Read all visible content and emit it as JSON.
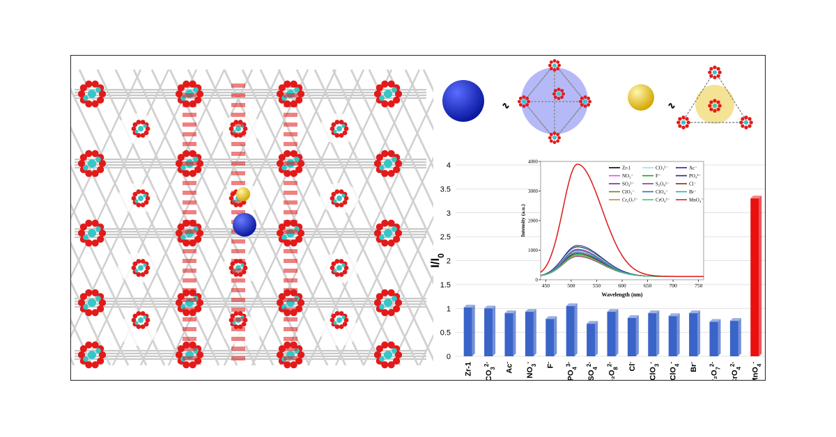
{
  "chart_data": [
    {
      "type": "bar",
      "ylabel": "I/I0",
      "ylim": [
        0,
        4
      ],
      "yticks": [
        0,
        0.5,
        1,
        1.5,
        2,
        2.5,
        3,
        3.5,
        4
      ],
      "grid": true,
      "categories": [
        "Zr-1",
        "CO3 2-",
        "Ac-",
        "NO3-",
        "F-",
        "PO4 3-",
        "SO4 2-",
        "S2O8 2-",
        "Cl-",
        "ClO3-",
        "ClO4-",
        "Br-",
        "Cr2O7 2-",
        "CrO4 2-",
        "MnO4-"
      ],
      "values": [
        1.02,
        1.0,
        0.9,
        0.93,
        0.78,
        1.05,
        0.68,
        0.93,
        0.8,
        0.9,
        0.84,
        0.9,
        0.72,
        0.74,
        3.3
      ],
      "colors": [
        "#3a64c8",
        "#3a64c8",
        "#3a64c8",
        "#3a64c8",
        "#3a64c8",
        "#3a64c8",
        "#3a64c8",
        "#3a64c8",
        "#3a64c8",
        "#3a64c8",
        "#3a64c8",
        "#3a64c8",
        "#3a64c8",
        "#3a64c8",
        "#e81010"
      ]
    },
    {
      "type": "line",
      "xlabel": "Wavelength (nm)",
      "ylabel": "Intensity (a.u.)",
      "xlim": [
        440,
        760
      ],
      "ylim": [
        0,
        4000
      ],
      "xticks": [
        450,
        500,
        550,
        600,
        650,
        700,
        750
      ],
      "yticks": [
        0,
        1000,
        2000,
        3000,
        4000
      ],
      "legend_position": "top-right",
      "series": [
        {
          "name": "Zr-1",
          "peak": 1000,
          "color": "#000000"
        },
        {
          "name": "CO3 2-",
          "peak": 980,
          "color": "#8ee8ee"
        },
        {
          "name": "Ac-",
          "peak": 880,
          "color": "#2222aa"
        },
        {
          "name": "NO3-",
          "peak": 900,
          "color": "#ff33ff"
        },
        {
          "name": "F-",
          "peak": 760,
          "color": "#229922"
        },
        {
          "name": "PO4 3-",
          "peak": 1050,
          "color": "#222288"
        },
        {
          "name": "SO4 2-",
          "peak": 680,
          "color": "#7722aa"
        },
        {
          "name": "S2O8 2-",
          "peak": 920,
          "color": "#883399"
        },
        {
          "name": "Cl-",
          "peak": 790,
          "color": "#882222"
        },
        {
          "name": "ClO3-",
          "peak": 880,
          "color": "#777722"
        },
        {
          "name": "ClO4-",
          "peak": 830,
          "color": "#3366cc"
        },
        {
          "name": "Br-",
          "peak": 880,
          "color": "#33aaaa"
        },
        {
          "name": "Cr2O7 2-",
          "peak": 700,
          "color": "#cc8833"
        },
        {
          "name": "CrO4 2-",
          "peak": 730,
          "color": "#33cc77"
        },
        {
          "name": "MnO4-",
          "peak": 3800,
          "color": "#dd2222"
        }
      ]
    }
  ],
  "bar_labels": [
    {
      "base": "Zr-1",
      "sub": "",
      "sup": ""
    },
    {
      "base": "CO",
      "sub": "3",
      "sup": "2-"
    },
    {
      "base": "Ac",
      "sub": "",
      "sup": "-"
    },
    {
      "base": "NO",
      "sub": "3",
      "sup": "-"
    },
    {
      "base": "F",
      "sub": "",
      "sup": "-"
    },
    {
      "base": "PO",
      "sub": "4",
      "sup": "3-"
    },
    {
      "base": "SO",
      "sub": "4",
      "sup": "2-"
    },
    {
      "base": "S₂O",
      "sub": "8",
      "sup": "2-"
    },
    {
      "base": "Cl",
      "sub": "",
      "sup": "-"
    },
    {
      "base": "ClO",
      "sub": "3",
      "sup": "-"
    },
    {
      "base": "ClO",
      "sub": "4",
      "sup": "-"
    },
    {
      "base": "Br",
      "sub": "",
      "sup": "-"
    },
    {
      "base": "Cr₂O",
      "sub": "7",
      "sup": "2-"
    },
    {
      "base": "CrO",
      "sub": "4",
      "sup": "2-"
    },
    {
      "base": "MnO",
      "sub": "4",
      "sup": "-"
    }
  ],
  "ylabel_main": "I/I",
  "ylabel_sub": "0",
  "inset_legend_labels": [
    "Zr-1",
    "CO₃²⁻",
    "Ac⁻",
    "NO₃⁻",
    "F⁻",
    "PO₄³⁻",
    "SO₄²⁻",
    "S₂O₈²⁻",
    "Cl⁻",
    "ClO₃⁻",
    "ClO₄⁻",
    "Br⁻",
    "Cr₂O₇²⁻",
    "CrO₄²⁻",
    "MnO₄⁻"
  ],
  "colors": {
    "frame": "#222222",
    "blue_sphere": "#1530d8",
    "yellow_sphere": "#f2c800",
    "framework_gray": "#c8c8c8",
    "oxygen_red": "#e21a1a",
    "zirconium_cyan": "#35c6c6"
  },
  "icons": [
    "blue-cage-sphere-icon",
    "yellow-cage-sphere-icon",
    "tetrahedral-cage-icon",
    "triangular-cage-icon"
  ]
}
